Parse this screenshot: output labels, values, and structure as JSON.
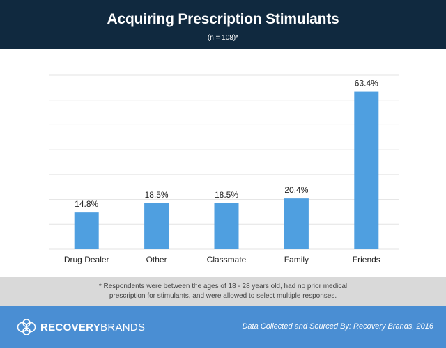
{
  "header": {
    "title": "Acquiring Prescription Stimulants",
    "subtitle": "(n = 108)*"
  },
  "chart_data": {
    "type": "bar",
    "categories": [
      "Drug Dealer",
      "Other",
      "Classmate",
      "Family",
      "Friends"
    ],
    "values": [
      14.8,
      18.5,
      18.5,
      20.4,
      63.4
    ],
    "value_labels": [
      "14.8%",
      "18.5%",
      "18.5%",
      "20.4%",
      "63.4%"
    ],
    "ylim": [
      0,
      70
    ],
    "grid": true,
    "bar_color": "#4f9fe0",
    "grid_color": "#e3e3e3"
  },
  "footnote": {
    "text": "* Respondents were between the ages of 18 - 28 years old, had no prior medical prescription for stimulants, and were allowed to select multiple responses."
  },
  "footer": {
    "brand_part1": "RECOVERY",
    "brand_part2": "BRANDS",
    "brand_icon": "recovery-brands-logo-icon",
    "source": "Data Collected and Sourced By: Recovery Brands, 2016"
  },
  "colors": {
    "header_bg": "#10293f",
    "footnote_bg": "#d9d9d9",
    "footer_bg": "#4a8ed3"
  }
}
